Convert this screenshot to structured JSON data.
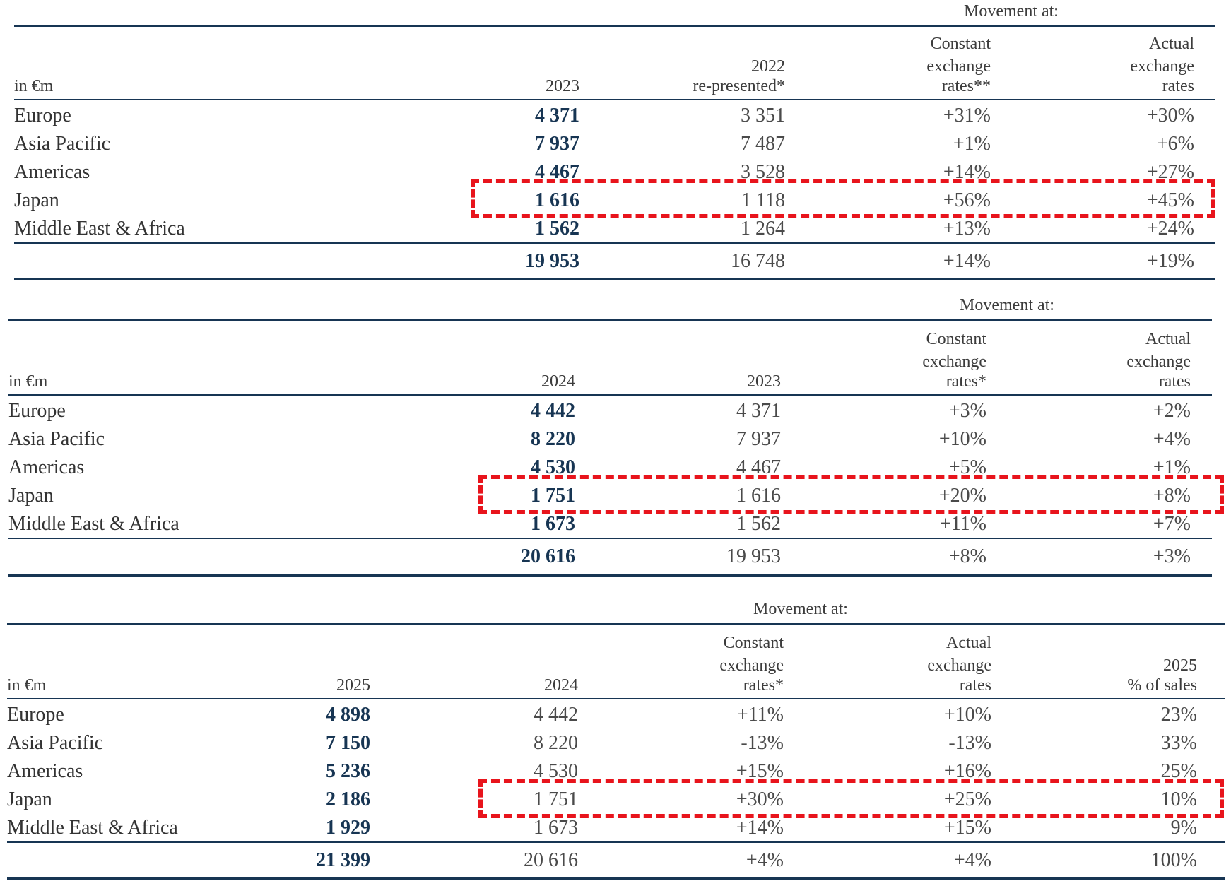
{
  "tables": [
    {
      "movement_label": "Movement at:",
      "unit_label": "in €m",
      "headers": {
        "c1": [
          "2023"
        ],
        "c2": [
          "2022",
          "re-presented*"
        ],
        "c3": [
          "Constant",
          "exchange",
          "rates**"
        ],
        "c4": [
          "Actual",
          "exchange",
          "rates"
        ]
      },
      "rows": [
        {
          "label": "Europe",
          "c1": "4 371",
          "c2": "3 351",
          "c3": "+31%",
          "c4": "+30%"
        },
        {
          "label": "Asia Pacific",
          "c1": "7 937",
          "c2": "7 487",
          "c3": "+1%",
          "c4": "+6%"
        },
        {
          "label": "Americas",
          "c1": "4 467",
          "c2": "3 528",
          "c3": "+14%",
          "c4": "+27%"
        },
        {
          "label": "Japan",
          "c1": "1 616",
          "c2": "1 118",
          "c3": "+56%",
          "c4": "+45%"
        },
        {
          "label": "Middle East & Africa",
          "c1": "1 562",
          "c2": "1 264",
          "c3": "+13%",
          "c4": "+24%"
        }
      ],
      "total": {
        "c1": "19 953",
        "c2": "16 748",
        "c3": "+14%",
        "c4": "+19%"
      }
    },
    {
      "movement_label": "Movement at:",
      "unit_label": "in €m",
      "headers": {
        "c1": [
          "2024"
        ],
        "c2": [
          "2023"
        ],
        "c3": [
          "Constant",
          "exchange",
          "rates*"
        ],
        "c4": [
          "Actual",
          "exchange",
          "rates"
        ]
      },
      "rows": [
        {
          "label": "Europe",
          "c1": "4 442",
          "c2": "4 371",
          "c3": "+3%",
          "c4": "+2%"
        },
        {
          "label": "Asia Pacific",
          "c1": "8 220",
          "c2": "7 937",
          "c3": "+10%",
          "c4": "+4%"
        },
        {
          "label": "Americas",
          "c1": "4 530",
          "c2": "4 467",
          "c3": "+5%",
          "c4": "+1%"
        },
        {
          "label": "Japan",
          "c1": "1 751",
          "c2": "1 616",
          "c3": "+20%",
          "c4": "+8%"
        },
        {
          "label": "Middle East & Africa",
          "c1": "1 673",
          "c2": "1 562",
          "c3": "+11%",
          "c4": "+7%"
        }
      ],
      "total": {
        "c1": "20 616",
        "c2": "19 953",
        "c3": "+8%",
        "c4": "+3%"
      }
    },
    {
      "movement_label": "Movement at:",
      "unit_label": "in €m",
      "headers": {
        "c1": [
          "2025"
        ],
        "c2": [
          "2024"
        ],
        "c3": [
          "Constant",
          "exchange",
          "rates*"
        ],
        "c4": [
          "Actual",
          "exchange",
          "rates"
        ],
        "c5": [
          "2025",
          "% of sales"
        ]
      },
      "rows": [
        {
          "label": "Europe",
          "c1": "4 898",
          "c2": "4 442",
          "c3": "+11%",
          "c4": "+10%",
          "c5": "23%"
        },
        {
          "label": "Asia Pacific",
          "c1": "7 150",
          "c2": "8 220",
          "c3": "-13%",
          "c4": "-13%",
          "c5": "33%"
        },
        {
          "label": "Americas",
          "c1": "5 236",
          "c2": "4 530",
          "c3": "+15%",
          "c4": "+16%",
          "c5": "25%"
        },
        {
          "label": "Japan",
          "c1": "2 186",
          "c2": "1 751",
          "c3": "+30%",
          "c4": "+25%",
          "c5": "10%"
        },
        {
          "label": "Middle East & Africa",
          "c1": "1 929",
          "c2": "1 673",
          "c3": "+14%",
          "c4": "+15%",
          "c5": "9%"
        }
      ],
      "total": {
        "c1": "21 399",
        "c2": "20 616",
        "c3": "+4%",
        "c4": "+4%",
        "c5": "100%"
      }
    }
  ],
  "highlight": {
    "row": "Japan",
    "color": "#e8141c"
  }
}
